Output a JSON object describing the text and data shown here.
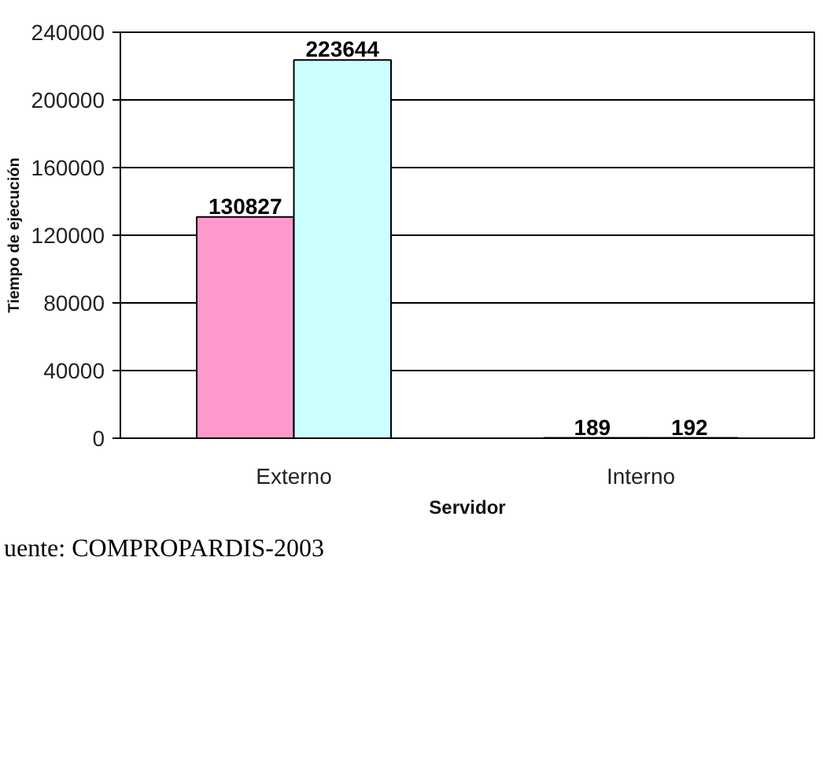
{
  "chart_data": {
    "type": "bar",
    "categories": [
      "Externo",
      "Interno"
    ],
    "series": [
      {
        "color": "#ff99cc",
        "values": [
          130827,
          189
        ]
      },
      {
        "color": "#ccffff",
        "values": [
          223644,
          192
        ]
      }
    ],
    "xlabel": "Servidor",
    "ylabel": "Tiempo de ejecución",
    "ylim": [
      0,
      240000
    ],
    "yticks": [
      0,
      40000,
      80000,
      120000,
      160000,
      200000,
      240000
    ],
    "grid": "y",
    "data_labels": true,
    "annotations": [
      "uente: COMPROPARDIS-2003"
    ]
  }
}
